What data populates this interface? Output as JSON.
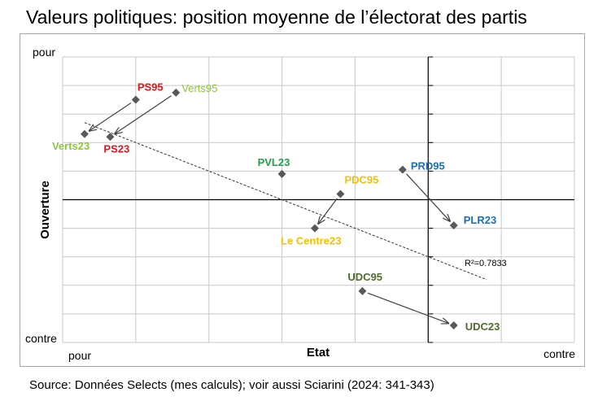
{
  "title": "Valeurs politiques: position moyenne de l’électorat des partis",
  "source": "Source: Données Selects (mes calculs); voir aussi Sciarini (2024: 341-343)",
  "chart_data": {
    "type": "scatter",
    "xlabel": "Etat",
    "ylabel": "Ouverture",
    "x_min_label": "pour",
    "x_max_label": "contre",
    "y_max_label": "pour",
    "y_min_label": "contre",
    "xlim": [
      -3,
      4
    ],
    "ylim": [
      -5,
      5
    ],
    "grid": true,
    "trendline_label": "R²=0.7833",
    "trendline": {
      "x": [
        -2.7,
        2.8
      ],
      "y": [
        2.7,
        -2.8
      ]
    },
    "points": [
      {
        "label": "PS95",
        "x": -2.0,
        "y": 3.5,
        "color": "#e8141c",
        "bold": true
      },
      {
        "label": "PS23",
        "x": -2.35,
        "y": 2.2,
        "color": "#e8141c",
        "bold": true
      },
      {
        "label": "Verts95",
        "x": -1.45,
        "y": 3.75,
        "color": "#8dc63f",
        "bold": false
      },
      {
        "label": "Verts23",
        "x": -2.7,
        "y": 2.3,
        "color": "#8dc63f",
        "bold": true
      },
      {
        "label": "PVL23",
        "x": 0.0,
        "y": 0.9,
        "color": "#22a14b",
        "bold": true
      },
      {
        "label": "PDC95",
        "x": 0.8,
        "y": 0.2,
        "color": "#f4c000",
        "bold": true
      },
      {
        "label": "Le Centre23",
        "x": 0.45,
        "y": -1.0,
        "color": "#f4c000",
        "bold": true
      },
      {
        "label": "PRD95",
        "x": 1.65,
        "y": 1.05,
        "color": "#1f6fb5",
        "bold": true
      },
      {
        "label": "PLR23",
        "x": 2.35,
        "y": -0.9,
        "color": "#1f6fb5",
        "bold": true
      },
      {
        "label": "UDC95",
        "x": 1.1,
        "y": -3.2,
        "color": "#4e6b2b",
        "bold": true
      },
      {
        "label": "UDC23",
        "x": 2.35,
        "y": -4.4,
        "color": "#4e6b2b",
        "bold": true
      }
    ],
    "arrows": [
      {
        "from": "PS95",
        "to": "Verts23"
      },
      {
        "from": "Verts95",
        "to": "PS23"
      },
      {
        "from": "PDC95",
        "to": "Le Centre23"
      },
      {
        "from": "PRD95",
        "to": "PLR23"
      },
      {
        "from": "UDC95",
        "to": "UDC23"
      }
    ]
  }
}
